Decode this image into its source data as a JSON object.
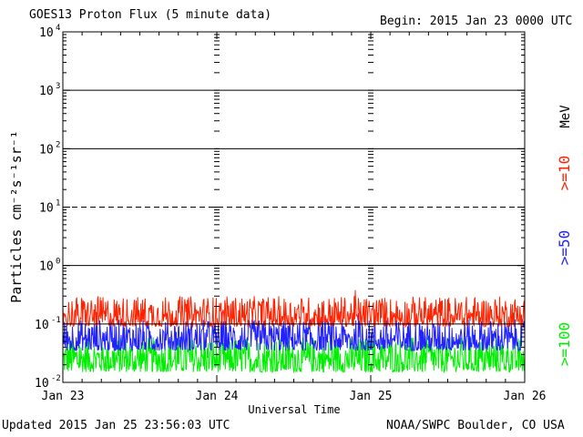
{
  "header": {
    "title": "GOES13 Proton Flux (5 minute data)",
    "begin": "Begin: 2015 Jan 23 0000 UTC"
  },
  "footer": {
    "updated": "Updated 2015 Jan 25 23:56:03 UTC",
    "credit": "NOAA/SWPC Boulder, CO USA"
  },
  "chart_data": {
    "type": "line",
    "title": "GOES13 Proton Flux (5 minute data)",
    "xlabel": "Universal Time",
    "ylabel": "Particles cm⁻²s⁻¹sr⁻¹",
    "yscale": "log",
    "ylim": [
      0.01,
      10000
    ],
    "xlim": [
      "Jan 23",
      "Jan 26"
    ],
    "x_tick_labels": [
      "Jan 23",
      "Jan 24",
      "Jan 25",
      "Jan 26"
    ],
    "y_ticks": [
      {
        "value": 10000,
        "base": "10",
        "exp": "4"
      },
      {
        "value": 1000,
        "base": "10",
        "exp": "3"
      },
      {
        "value": 100,
        "base": "10",
        "exp": "2"
      },
      {
        "value": 10,
        "base": "10",
        "exp": "1"
      },
      {
        "value": 1,
        "base": "10",
        "exp": "0"
      },
      {
        "value": 0.1,
        "base": "10",
        "exp": "-1"
      },
      {
        "value": 0.01,
        "base": "10",
        "exp": "-2"
      }
    ],
    "reference_lines": [
      {
        "value": 1000,
        "style": "solid"
      },
      {
        "value": 100,
        "style": "solid"
      },
      {
        "value": 10,
        "style": "dashed"
      },
      {
        "value": 1,
        "style": "solid"
      },
      {
        "value": 0.1,
        "style": "solid"
      }
    ],
    "energy_unit_label": "MeV",
    "series": [
      {
        "name": ">=10",
        "color": "#ff2200",
        "typical_range": [
          0.09,
          0.3
        ]
      },
      {
        "name": ">=50",
        "color": "#2222ff",
        "typical_range": [
          0.035,
          0.12
        ]
      },
      {
        "name": ">=100",
        "color": "#00ee00",
        "typical_range": [
          0.015,
          0.06
        ]
      }
    ]
  }
}
